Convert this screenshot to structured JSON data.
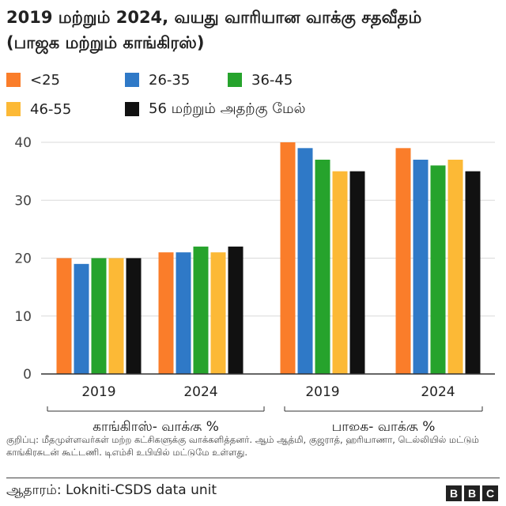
{
  "title_line1": "2019 மற்றும் 2024, வயது வாரியான வாக்கு சதவீதம்",
  "title_line2": "(பாஜக மற்றும் காங்கிரஸ்)",
  "note": "குறிப்பு: மீதமுள்ளவர்கள் மற்ற கட்சிகளுக்கு வாக்களித்தனர். ஆம் ஆத்மி, குஜராத், ஹரியாணா, டெல்லியில் மட்டும் காங்கிரசுடன் கூட்டணி. டிஎம்சி உபியில் மட்டுமே உள்ளது.",
  "source": "ஆதாரம்: Lokniti-CSDS data unit",
  "logo_letters": [
    "B",
    "B",
    "C"
  ],
  "colors": {
    "lt25": "#fa7d2a",
    "a26_35": "#2f79c7",
    "a36_45": "#26a32c",
    "a46_55": "#fcb936",
    "a56p": "#111111",
    "grid": "#d9d9d9",
    "axis": "#333333"
  },
  "chart_data": {
    "type": "bar",
    "title": "2019 மற்றும் 2024, வயது வாரியான வாக்கு சதவீதம் (பாஜக மற்றும் காங்கிரஸ்)",
    "categories": [
      "2019",
      "2024",
      "2019",
      "2024"
    ],
    "groups": [
      {
        "label": "காங்கிரஸ்- வாக்கு %",
        "categories": [
          "2019",
          "2024"
        ]
      },
      {
        "label": "பாஜக- வாக்கு %",
        "categories": [
          "2019",
          "2024"
        ]
      }
    ],
    "series": [
      {
        "name": "<25",
        "color": "#fa7d2a",
        "values": [
          20,
          21,
          40,
          39
        ]
      },
      {
        "name": "26-35",
        "color": "#2f79c7",
        "values": [
          19,
          21,
          39,
          37
        ]
      },
      {
        "name": "36-45",
        "color": "#26a32c",
        "values": [
          20,
          22,
          37,
          36
        ]
      },
      {
        "name": "46-55",
        "color": "#fcb936",
        "values": [
          20,
          21,
          35,
          37
        ]
      },
      {
        "name": "56 மற்றும் அதற்கு மேல்",
        "color": "#111111",
        "values": [
          20,
          22,
          35,
          35
        ]
      }
    ],
    "ylim": [
      0,
      40
    ],
    "yticks": [
      0,
      10,
      20,
      30,
      40
    ],
    "grid": true,
    "legend_position": "top"
  }
}
